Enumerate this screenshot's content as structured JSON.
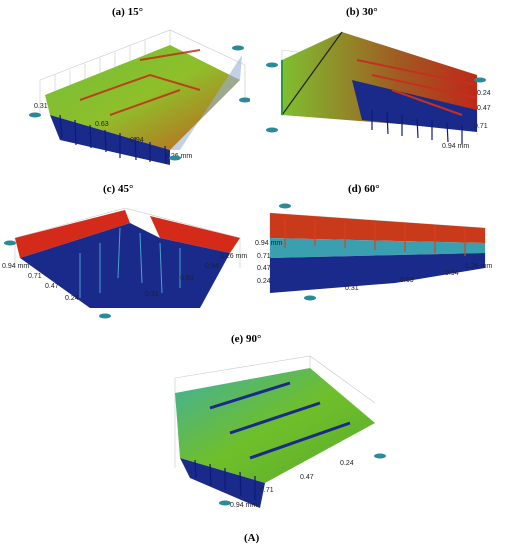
{
  "panels": [
    {
      "id": "a",
      "title": "(a) 15°",
      "ticks": [
        "0.31",
        "0.63",
        "0.94",
        "1.26 mm"
      ]
    },
    {
      "id": "b",
      "title": "(b) 30°",
      "ticks": [
        "0.24",
        "0.47",
        "0.71",
        "0.94 mm"
      ]
    },
    {
      "id": "c",
      "title": "(c) 45°",
      "ticks": [
        "0.94 mm",
        "0.71",
        "0.47",
        "0.24",
        "0.31",
        "0.63",
        "0.94",
        "1.26 mm"
      ]
    },
    {
      "id": "d",
      "title": "(d) 60°",
      "ticks": [
        "0.94 mm",
        "0.71",
        "0.47",
        "0.24",
        "0.31",
        "0.63",
        "0.94",
        "1.26 mm"
      ]
    },
    {
      "id": "e",
      "title": "(e) 90°",
      "ticks": [
        "0.24",
        "0.47",
        "0.71",
        "0.94 mm"
      ]
    }
  ],
  "figure_label": "(A)",
  "colors": {
    "high": "#d42a1a",
    "mid": "#5bbf2a",
    "low": "#1a2a8a",
    "deep": "#0a1460",
    "grid": "#c8c8c8"
  }
}
